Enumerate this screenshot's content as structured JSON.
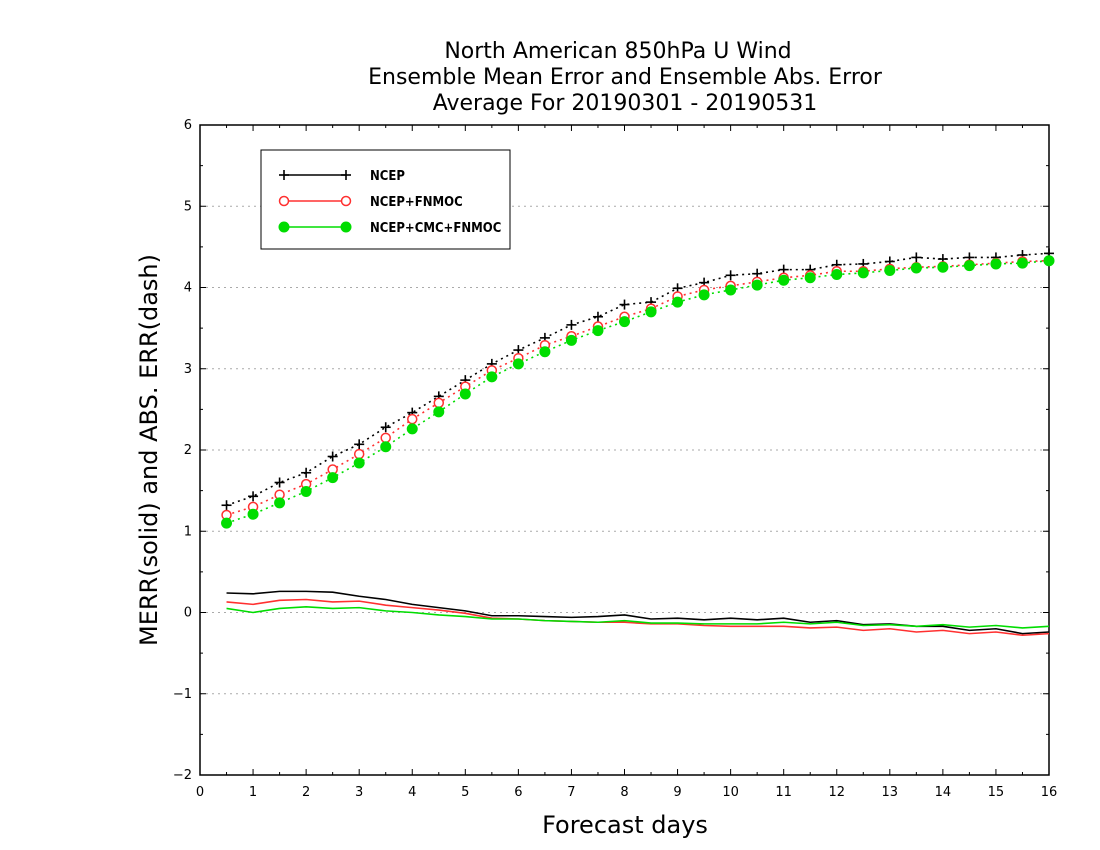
{
  "chart_data": {
    "type": "line",
    "title_lines": [
      "North American 850hPa U Wind",
      "Ensemble Mean Error and Ensemble Abs. Error",
      "Average For 20190301 - 20190531"
    ],
    "xlabel": "Forecast days",
    "ylabel": "MERR(solid) and ABS. ERR(dash)",
    "xlim": [
      0,
      16
    ],
    "ylim": [
      -2,
      6
    ],
    "x_ticks": [
      "0",
      "1",
      "2",
      "3",
      "4",
      "5",
      "6",
      "7",
      "8",
      "9",
      "10",
      "11",
      "12",
      "13",
      "14",
      "15",
      "16"
    ],
    "y_ticks": [
      "-2",
      "-1",
      "0",
      "1",
      "2",
      "3",
      "4",
      "5",
      "6"
    ],
    "grid": "horizontal dotted",
    "legend_position": "top-left",
    "x": [
      0.5,
      1,
      1.5,
      2,
      2.5,
      3,
      3.5,
      4,
      4.5,
      5,
      5.5,
      6,
      6.5,
      7,
      7.5,
      8,
      8.5,
      9,
      9.5,
      10,
      10.5,
      11,
      11.5,
      12,
      12.5,
      13,
      13.5,
      14,
      14.5,
      15,
      15.5,
      16
    ],
    "series": [
      {
        "name": "NCEP",
        "color": "#000000",
        "marker": "plus",
        "mean_error": [
          0.24,
          0.23,
          0.26,
          0.26,
          0.25,
          0.2,
          0.16,
          0.1,
          0.06,
          0.02,
          -0.04,
          -0.04,
          -0.05,
          -0.06,
          -0.05,
          -0.03,
          -0.08,
          -0.07,
          -0.09,
          -0.07,
          -0.09,
          -0.07,
          -0.12,
          -0.1,
          -0.15,
          -0.14,
          -0.17,
          -0.17,
          -0.22,
          -0.2,
          -0.26,
          -0.24
        ],
        "abs_error": [
          1.32,
          1.43,
          1.6,
          1.72,
          1.92,
          2.07,
          2.28,
          2.46,
          2.66,
          2.86,
          3.06,
          3.23,
          3.38,
          3.54,
          3.64,
          3.79,
          3.82,
          3.99,
          4.06,
          4.15,
          4.17,
          4.22,
          4.22,
          4.28,
          4.29,
          4.32,
          4.37,
          4.35,
          4.37,
          4.37,
          4.4,
          4.42
        ]
      },
      {
        "name": "NCEP+FNMOC",
        "color": "#ff3030",
        "marker": "open-circle",
        "mean_error": [
          0.13,
          0.1,
          0.15,
          0.16,
          0.13,
          0.14,
          0.09,
          0.06,
          0.03,
          -0.01,
          -0.07,
          -0.08,
          -0.1,
          -0.11,
          -0.12,
          -0.12,
          -0.14,
          -0.14,
          -0.16,
          -0.17,
          -0.17,
          -0.17,
          -0.19,
          -0.18,
          -0.22,
          -0.2,
          -0.24,
          -0.22,
          -0.26,
          -0.24,
          -0.28,
          -0.26
        ],
        "abs_error": [
          1.2,
          1.3,
          1.45,
          1.58,
          1.76,
          1.95,
          2.15,
          2.38,
          2.58,
          2.78,
          2.98,
          3.13,
          3.29,
          3.4,
          3.52,
          3.64,
          3.74,
          3.89,
          3.97,
          4.02,
          4.07,
          4.12,
          4.15,
          4.2,
          4.2,
          4.23,
          4.25,
          4.26,
          4.28,
          4.3,
          4.32,
          4.33
        ]
      },
      {
        "name": "NCEP+CMC+FNMOC",
        "color": "#00dd00",
        "marker": "filled-circle",
        "mean_error": [
          0.05,
          0.0,
          0.05,
          0.07,
          0.05,
          0.06,
          0.02,
          0.0,
          -0.03,
          -0.05,
          -0.08,
          -0.08,
          -0.1,
          -0.11,
          -0.12,
          -0.1,
          -0.13,
          -0.13,
          -0.14,
          -0.14,
          -0.14,
          -0.12,
          -0.14,
          -0.12,
          -0.16,
          -0.15,
          -0.17,
          -0.15,
          -0.18,
          -0.16,
          -0.19,
          -0.17
        ],
        "abs_error": [
          1.1,
          1.21,
          1.35,
          1.49,
          1.66,
          1.84,
          2.04,
          2.26,
          2.47,
          2.69,
          2.9,
          3.06,
          3.21,
          3.35,
          3.47,
          3.58,
          3.7,
          3.82,
          3.91,
          3.97,
          4.03,
          4.09,
          4.12,
          4.16,
          4.18,
          4.21,
          4.24,
          4.25,
          4.27,
          4.29,
          4.3,
          4.33
        ]
      }
    ]
  }
}
